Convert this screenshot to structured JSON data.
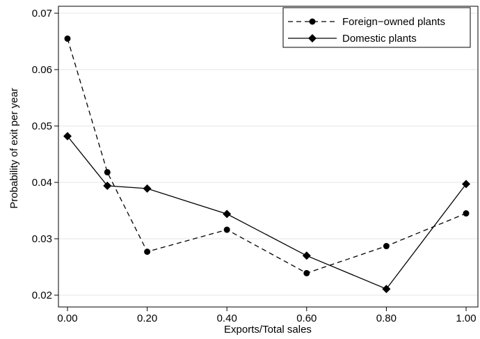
{
  "chart_data": {
    "type": "line",
    "title": "",
    "xlabel": "Exports/Total sales",
    "ylabel": "Probability of exit per year",
    "x": [
      0.0,
      0.1,
      0.2,
      0.4,
      0.6,
      0.8,
      1.0
    ],
    "xlim": [
      0,
      1
    ],
    "ylim": [
      0.02,
      0.07
    ],
    "x_ticks": [
      0.0,
      0.2,
      0.4,
      0.6,
      0.8,
      1.0
    ],
    "x_tick_labels": [
      "0.00",
      "0.20",
      "0.40",
      "0.60",
      "0.80",
      "1.00"
    ],
    "y_ticks": [
      0.02,
      0.03,
      0.04,
      0.05,
      0.06,
      0.07
    ],
    "y_tick_labels": [
      "0.02",
      "0.03",
      "0.04",
      "0.05",
      "0.06",
      "0.07"
    ],
    "grid": true,
    "legend_position": "top-right",
    "series": [
      {
        "name": "Foreign−owned plants",
        "style": "dashed",
        "marker": "circle",
        "color": "#000000",
        "values": [
          0.0655,
          0.0418,
          0.0277,
          0.0316,
          0.0239,
          0.0287,
          0.0345
        ]
      },
      {
        "name": "Domestic plants",
        "style": "solid",
        "marker": "diamond",
        "color": "#000000",
        "values": [
          0.0482,
          0.0394,
          0.0389,
          0.0344,
          0.027,
          0.0211,
          0.0397
        ]
      }
    ]
  }
}
